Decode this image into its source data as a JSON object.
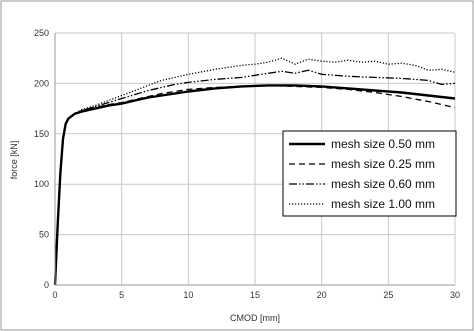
{
  "chart_data": {
    "type": "line",
    "title": "",
    "xlabel": "CMOD [mm]",
    "ylabel": "force [kN]",
    "xlim": [
      0,
      30
    ],
    "ylim": [
      0,
      250
    ],
    "x_ticks": [
      0,
      5,
      10,
      15,
      20,
      25,
      30
    ],
    "y_ticks": [
      0,
      50,
      100,
      150,
      200,
      250
    ],
    "grid": true,
    "legend_position": "right",
    "series": [
      {
        "name": "mesh size 0.50 mm",
        "line_style": "solid",
        "points": [
          [
            0,
            0
          ],
          [
            0.2,
            60
          ],
          [
            0.4,
            110
          ],
          [
            0.6,
            145
          ],
          [
            0.8,
            160
          ],
          [
            1,
            165
          ],
          [
            1.5,
            170
          ],
          [
            2,
            172
          ],
          [
            3,
            175
          ],
          [
            4,
            178
          ],
          [
            5,
            180
          ],
          [
            6,
            183
          ],
          [
            7,
            186
          ],
          [
            8,
            188
          ],
          [
            9,
            190
          ],
          [
            10,
            192
          ],
          [
            12,
            195
          ],
          [
            14,
            197
          ],
          [
            16,
            198
          ],
          [
            18,
            198
          ],
          [
            20,
            197
          ],
          [
            22,
            195
          ],
          [
            24,
            193
          ],
          [
            26,
            191
          ],
          [
            28,
            188
          ],
          [
            30,
            185
          ]
        ]
      },
      {
        "name": "mesh size 0.25 mm",
        "line_style": "dashed",
        "points": [
          [
            0,
            0
          ],
          [
            0.2,
            60
          ],
          [
            0.4,
            110
          ],
          [
            0.6,
            145
          ],
          [
            0.8,
            160
          ],
          [
            1,
            165
          ],
          [
            1.5,
            170
          ],
          [
            2,
            173
          ],
          [
            3,
            176
          ],
          [
            4,
            179
          ],
          [
            5,
            181
          ],
          [
            6,
            184
          ],
          [
            7,
            187
          ],
          [
            8,
            190
          ],
          [
            9,
            192
          ],
          [
            10,
            194
          ],
          [
            12,
            196
          ],
          [
            14,
            197
          ],
          [
            16,
            198
          ],
          [
            18,
            197
          ],
          [
            20,
            196
          ],
          [
            22,
            194
          ],
          [
            24,
            191
          ],
          [
            26,
            187
          ],
          [
            28,
            182
          ],
          [
            30,
            176
          ]
        ]
      },
      {
        "name": "mesh size 0.60 mm",
        "line_style": "dash-dot-dot",
        "points": [
          [
            0,
            0
          ],
          [
            0.2,
            60
          ],
          [
            0.4,
            110
          ],
          [
            0.6,
            145
          ],
          [
            0.8,
            160
          ],
          [
            1,
            165
          ],
          [
            1.5,
            170
          ],
          [
            2,
            173
          ],
          [
            3,
            177
          ],
          [
            4,
            181
          ],
          [
            5,
            185
          ],
          [
            6,
            189
          ],
          [
            7,
            193
          ],
          [
            8,
            196
          ],
          [
            9,
            199
          ],
          [
            10,
            201
          ],
          [
            12,
            204
          ],
          [
            14,
            206
          ],
          [
            15,
            208
          ],
          [
            16,
            210
          ],
          [
            17,
            212
          ],
          [
            18,
            210
          ],
          [
            19,
            213
          ],
          [
            20,
            209
          ],
          [
            22,
            207
          ],
          [
            24,
            206
          ],
          [
            26,
            205
          ],
          [
            28,
            203
          ],
          [
            29,
            199
          ],
          [
            30,
            200
          ]
        ]
      },
      {
        "name": "mesh size 1.00 mm",
        "line_style": "dotted",
        "points": [
          [
            0,
            0
          ],
          [
            0.2,
            60
          ],
          [
            0.4,
            110
          ],
          [
            0.6,
            145
          ],
          [
            0.8,
            160
          ],
          [
            1,
            165
          ],
          [
            1.5,
            170
          ],
          [
            2,
            174
          ],
          [
            3,
            178
          ],
          [
            4,
            183
          ],
          [
            5,
            188
          ],
          [
            6,
            193
          ],
          [
            7,
            198
          ],
          [
            8,
            203
          ],
          [
            9,
            206
          ],
          [
            10,
            209
          ],
          [
            12,
            214
          ],
          [
            14,
            218
          ],
          [
            15,
            219
          ],
          [
            16,
            221
          ],
          [
            17,
            225
          ],
          [
            18,
            219
          ],
          [
            19,
            224
          ],
          [
            20,
            222
          ],
          [
            21,
            221
          ],
          [
            22,
            223
          ],
          [
            23,
            221
          ],
          [
            24,
            222
          ],
          [
            25,
            219
          ],
          [
            26,
            220
          ],
          [
            27,
            218
          ],
          [
            28,
            213
          ],
          [
            29,
            214
          ],
          [
            30,
            211
          ]
        ]
      }
    ]
  }
}
